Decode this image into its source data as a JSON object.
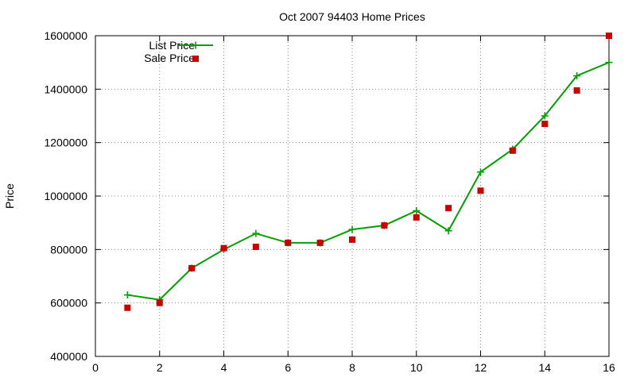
{
  "chart_data": {
    "type": "line",
    "title": "Oct 2007 94403 Home Prices",
    "xlabel": "",
    "ylabel": "Price",
    "xlim": [
      0,
      16
    ],
    "ylim": [
      400000,
      1600000
    ],
    "xticks": [
      0,
      2,
      4,
      6,
      8,
      10,
      12,
      14,
      16
    ],
    "yticks": [
      400000,
      600000,
      800000,
      1000000,
      1200000,
      1400000,
      1600000
    ],
    "grid": true,
    "legend_position": "top-left",
    "series": [
      {
        "name": "List Price",
        "style": "line+points",
        "marker": "plus",
        "color": "#00a000",
        "x": [
          1,
          2,
          3,
          4,
          5,
          6,
          7,
          8,
          9,
          10,
          11,
          12,
          13,
          14,
          15,
          16
        ],
        "y": [
          630000,
          612000,
          730000,
          800000,
          860000,
          825000,
          825000,
          875000,
          890000,
          945000,
          870000,
          1090000,
          1175000,
          1300000,
          1450000,
          1500000
        ]
      },
      {
        "name": "Sale Price",
        "style": "points",
        "marker": "square",
        "color": "#cc0000",
        "x": [
          1,
          2,
          3,
          4,
          5,
          6,
          7,
          8,
          9,
          10,
          11,
          12,
          13,
          14,
          15,
          16
        ],
        "y": [
          582000,
          600000,
          730000,
          805000,
          810000,
          825000,
          825000,
          837000,
          890000,
          920000,
          955000,
          1020000,
          1170000,
          1270000,
          1395000,
          1600000
        ]
      }
    ]
  }
}
